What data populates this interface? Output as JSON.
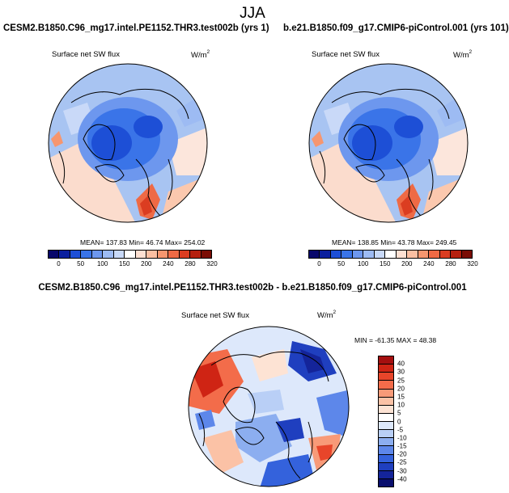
{
  "title": "JJA",
  "panels": {
    "left": {
      "case_title": "CESM2.B1850.C96_mg17.intel.PE1152.THR3.test002b (yrs 1)",
      "field": "Surface net SW flux",
      "units": "W/m",
      "units_exp": "2",
      "stats": "MEAN= 137.83  Min=  46.74  Max= 254.02"
    },
    "right": {
      "case_title": "b.e21.B1850.f09_g17.CMIP6-piControl.001 (yrs 101)",
      "field": "Surface net SW flux",
      "units": "W/m",
      "units_exp": "2",
      "stats": "MEAN= 138.85  Min=  43.78  Max= 249.45"
    },
    "diff": {
      "case_title": "CESM2.B1850.C96_mg17.intel.PE1152.THR3.test002b - b.e21.B1850.f09_g17.CMIP6-piControl.001",
      "field": "Surface net SW flux",
      "units": "W/m",
      "units_exp": "2",
      "stats": "MIN = -61.35 MAX =  48.38"
    }
  },
  "colorbar_abs": {
    "colors": [
      "#08086b",
      "#0b1f9e",
      "#1d4fd6",
      "#3a74e8",
      "#6d97ee",
      "#9dbbf3",
      "#c8d9f8",
      "#ffffff",
      "#fde0d2",
      "#fbbfa2",
      "#f6966f",
      "#ee6a45",
      "#db3d21",
      "#b5200f",
      "#7a0d05"
    ],
    "ticks": [
      "0",
      "50",
      "100",
      "150",
      "200",
      "240",
      "280",
      "320"
    ]
  },
  "colorbar_diff": {
    "colors_top_to_bottom": [
      "#a50f0f",
      "#cf2414",
      "#e8452a",
      "#f36c4a",
      "#f89a78",
      "#fbc2a6",
      "#fde3d4",
      "#ffffff",
      "#dde8fb",
      "#b9cff6",
      "#8caef0",
      "#5d87ea",
      "#3462dc",
      "#1f3fbf",
      "#14249a",
      "#0a0f6e"
    ],
    "ticks": [
      "40",
      "30",
      "25",
      "20",
      "15",
      "10",
      "5",
      "0",
      "-5",
      "-10",
      "-15",
      "-20",
      "-25",
      "-30",
      "-40"
    ]
  }
}
